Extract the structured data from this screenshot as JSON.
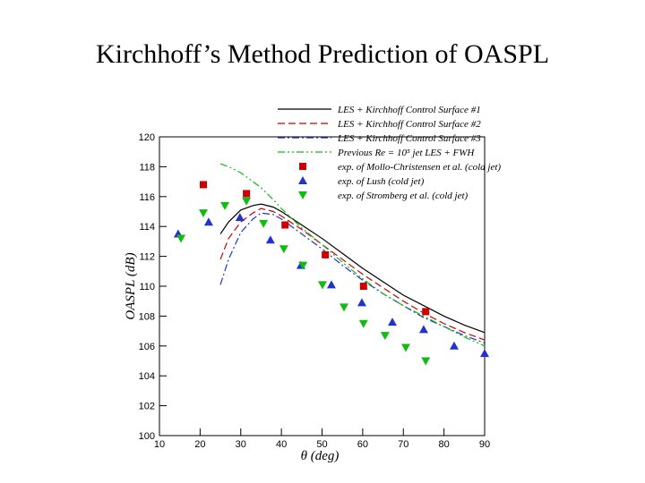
{
  "chart_data": {
    "type": "line",
    "title": "Kirchhoff’s Method Prediction of OASPL",
    "xlabel": "θ (deg)",
    "ylabel": "OASPL (dB)",
    "xlim": [
      10,
      90
    ],
    "ylim": [
      100,
      120
    ],
    "xticks": [
      10,
      20,
      30,
      40,
      50,
      60,
      70,
      80,
      90
    ],
    "yticks": [
      100,
      102,
      104,
      106,
      108,
      110,
      112,
      114,
      116,
      118,
      120
    ],
    "series": [
      {
        "name": "LES + Kirchhoff Control Surface #1",
        "color": "#000000",
        "dash": "solid",
        "x": [
          25,
          27,
          30,
          33,
          35,
          38,
          40,
          45,
          50,
          55,
          60,
          65,
          70,
          75,
          80,
          85,
          90
        ],
        "values": [
          113.5,
          114.3,
          115.1,
          115.4,
          115.5,
          115.3,
          115.0,
          114.1,
          113.2,
          112.2,
          111.2,
          110.3,
          109.4,
          108.7,
          108.0,
          107.4,
          106.9
        ]
      },
      {
        "name": "LES + Kirchhoff Control Surface #2",
        "color": "#cc0000",
        "dash": "dashed",
        "x": [
          25,
          27,
          30,
          33,
          35,
          38,
          40,
          45,
          50,
          55,
          60,
          65,
          70,
          75,
          80,
          85,
          90
        ],
        "values": [
          111.8,
          113.2,
          114.3,
          114.9,
          115.2,
          115.0,
          114.7,
          113.8,
          112.8,
          111.8,
          110.8,
          109.9,
          109.0,
          108.2,
          107.5,
          106.9,
          106.4
        ]
      },
      {
        "name": "LES + Kirchhoff Control Surface #3",
        "color": "#2233cc",
        "dash": "dashdot",
        "x": [
          25,
          27,
          30,
          33,
          35,
          38,
          40,
          45,
          50,
          55,
          60,
          65,
          70,
          75,
          80,
          85,
          90
        ],
        "values": [
          110.1,
          111.8,
          113.6,
          114.5,
          114.9,
          114.8,
          114.5,
          113.5,
          112.5,
          111.4,
          110.4,
          109.5,
          108.7,
          107.9,
          107.3,
          106.7,
          106.2
        ]
      },
      {
        "name": "Previous Re = 10⁵ jet LES + FWH",
        "color": "#11bb11",
        "dash": "dashdotdot",
        "x": [
          25,
          27,
          30,
          33,
          35,
          38,
          40,
          45,
          50,
          55,
          60,
          65,
          70,
          75,
          80,
          85,
          90
        ],
        "values": [
          118.2,
          118.0,
          117.6,
          117.0,
          116.6,
          115.8,
          115.2,
          113.9,
          112.8,
          111.6,
          110.5,
          109.5,
          108.7,
          108.0,
          107.3,
          106.6,
          106.0
        ]
      },
      {
        "name": "exp. of Mollo-Christensen et al. (cold jet)",
        "color": "#cc0000",
        "marker": "square",
        "x": [
          20.8,
          31.4,
          40.9,
          50.8,
          60.2,
          75.5
        ],
        "values": [
          116.8,
          116.2,
          114.1,
          112.1,
          110.0,
          108.3
        ]
      },
      {
        "name": "exp. of Lush (cold jet)",
        "color": "#2233cc",
        "marker": "triangle-up",
        "x": [
          14.6,
          22.1,
          29.8,
          37.3,
          44.8,
          52.3,
          59.8,
          67.3,
          75,
          82.5,
          90
        ],
        "values": [
          113.5,
          114.3,
          114.6,
          113.1,
          111.4,
          110.1,
          108.9,
          107.6,
          107.1,
          106.0,
          105.5
        ]
      },
      {
        "name": "exp. of Stromberg et al. (cold jet)",
        "color": "#11bb11",
        "marker": "triangle-down",
        "x": [
          15.3,
          20.8,
          26.1,
          31.4,
          35.6,
          40.6,
          45.3,
          50.1,
          55.4,
          60.2,
          65.5,
          70.6,
          75.5
        ],
        "values": [
          113.2,
          114.9,
          115.4,
          115.7,
          114.2,
          112.5,
          111.4,
          110.1,
          108.6,
          107.5,
          106.7,
          105.9,
          105.0
        ]
      }
    ]
  }
}
